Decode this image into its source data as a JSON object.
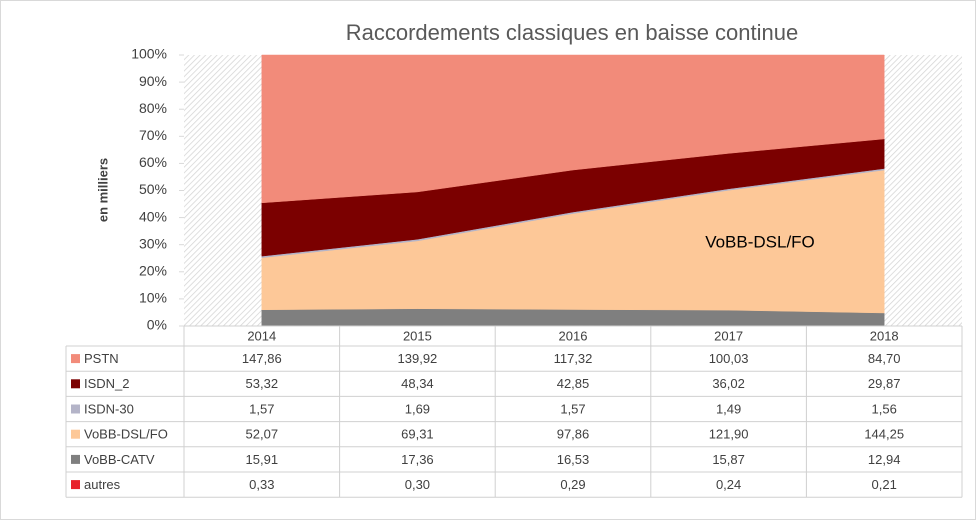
{
  "chart_data": {
    "type": "area",
    "stacked": "percent",
    "title": "Raccordements classiques en baisse continue",
    "y_label": "en milliers",
    "annotation": "VoBB-DSL/FO",
    "categories": [
      "2014",
      "2015",
      "2016",
      "2017",
      "2018"
    ],
    "ylim": [
      0,
      100
    ],
    "yticks": [
      {
        "value": 0,
        "label": "0%"
      },
      {
        "value": 10,
        "label": "10%"
      },
      {
        "value": 20,
        "label": "20%"
      },
      {
        "value": 30,
        "label": "30%"
      },
      {
        "value": 40,
        "label": "40%"
      },
      {
        "value": 50,
        "label": "50%"
      },
      {
        "value": 60,
        "label": "60%"
      },
      {
        "value": 70,
        "label": "70%"
      },
      {
        "value": 80,
        "label": "80%"
      },
      {
        "value": 90,
        "label": "90%"
      },
      {
        "value": 100,
        "label": "100%"
      }
    ],
    "series": [
      {
        "name": "PSTN",
        "color": "#f28b7a",
        "values": [
          147.86,
          139.92,
          117.32,
          100.03,
          84.7
        ],
        "value_labels": [
          "147,86",
          "139,92",
          "117,32",
          "100,03",
          "84,70"
        ]
      },
      {
        "name": "ISDN_2",
        "color": "#7b0000",
        "values": [
          53.32,
          48.34,
          42.85,
          36.02,
          29.87
        ],
        "value_labels": [
          "53,32",
          "48,34",
          "42,85",
          "36,02",
          "29,87"
        ]
      },
      {
        "name": "ISDN-30",
        "color": "#b4b4c8",
        "values": [
          1.57,
          1.69,
          1.57,
          1.49,
          1.56
        ],
        "value_labels": [
          "1,57",
          "1,69",
          "1,57",
          "1,49",
          "1,56"
        ]
      },
      {
        "name": "VoBB-DSL/FO",
        "color": "#fdc898",
        "values": [
          52.07,
          69.31,
          97.86,
          121.9,
          144.25
        ],
        "value_labels": [
          "52,07",
          "69,31",
          "97,86",
          "121,90",
          "144,25"
        ]
      },
      {
        "name": "VoBB-CATV",
        "color": "#7f7f7f",
        "values": [
          15.91,
          17.36,
          16.53,
          15.87,
          12.94
        ],
        "value_labels": [
          "15,91",
          "17,36",
          "16,53",
          "15,87",
          "12,94"
        ]
      },
      {
        "name": "autres",
        "color": "#e8202a",
        "values": [
          0.33,
          0.3,
          0.29,
          0.24,
          0.21
        ],
        "value_labels": [
          "0,33",
          "0,30",
          "0,29",
          "0,24",
          "0,21"
        ]
      }
    ]
  }
}
